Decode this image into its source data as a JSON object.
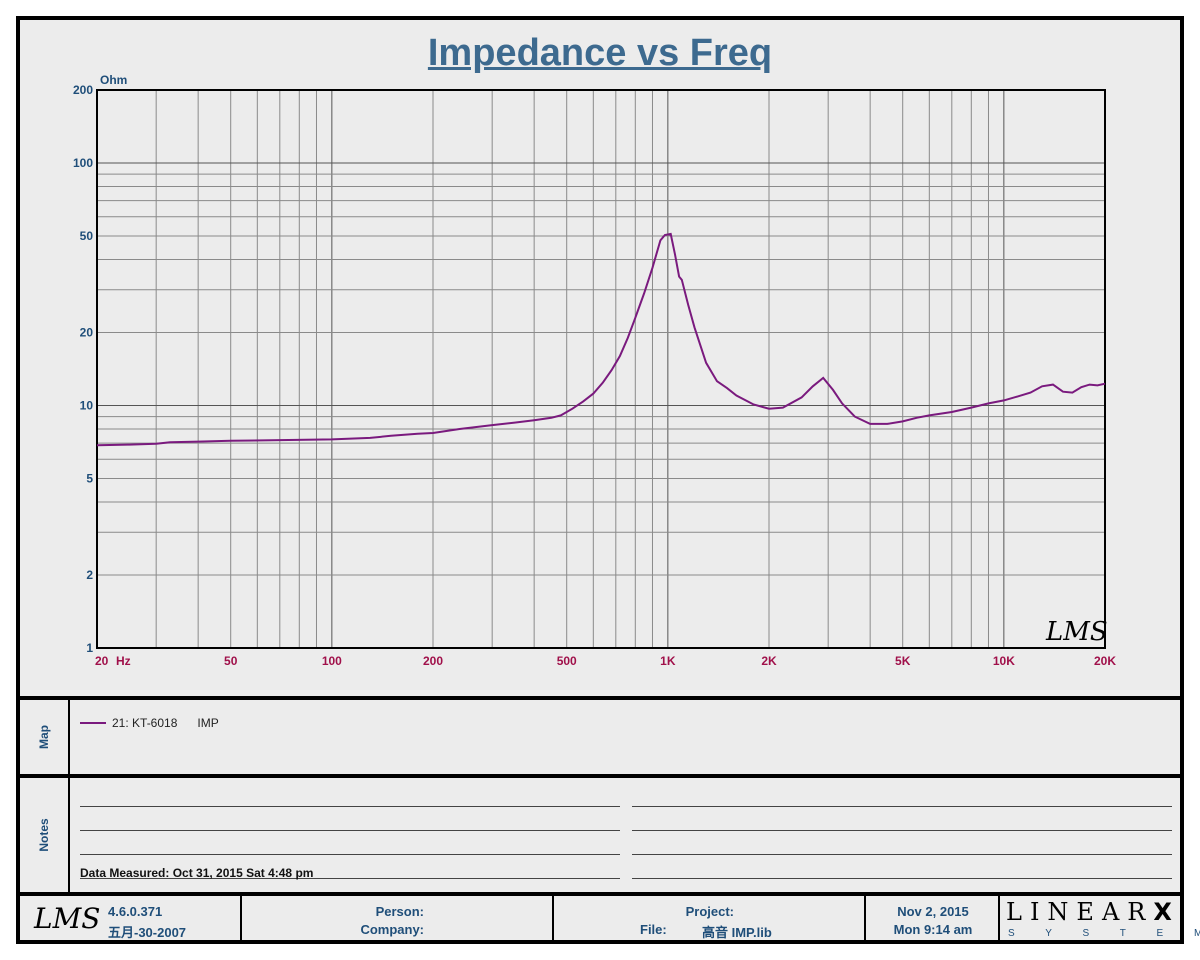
{
  "chart_data": {
    "type": "line",
    "title": "Impedance vs Freq",
    "ylabel": "Ohm",
    "xunit": "Hz",
    "xscale": "log",
    "yscale": "log",
    "xlim": [
      20,
      20000
    ],
    "ylim": [
      1,
      200
    ],
    "grid": true,
    "watermark": "LMS",
    "y_ticks": [
      {
        "v": 1,
        "label": "1"
      },
      {
        "v": 2,
        "label": "2"
      },
      {
        "v": 5,
        "label": "5"
      },
      {
        "v": 10,
        "label": "10"
      },
      {
        "v": 20,
        "label": "20"
      },
      {
        "v": 50,
        "label": "50"
      },
      {
        "v": 100,
        "label": "100"
      },
      {
        "v": 200,
        "label": "200"
      }
    ],
    "x_ticks": [
      {
        "v": 20,
        "label": "20"
      },
      {
        "v": 50,
        "label": "50"
      },
      {
        "v": 100,
        "label": "100"
      },
      {
        "v": 200,
        "label": "200"
      },
      {
        "v": 500,
        "label": "500"
      },
      {
        "v": 1000,
        "label": "1K"
      },
      {
        "v": 2000,
        "label": "2K"
      },
      {
        "v": 5000,
        "label": "5K"
      },
      {
        "v": 10000,
        "label": "10K"
      },
      {
        "v": 20000,
        "label": "20K"
      }
    ],
    "series": [
      {
        "name": "21: KT-6018",
        "type_label": "IMP",
        "color": "#7a1a7e",
        "x": [
          20,
          25,
          30,
          33,
          40,
          50,
          70,
          100,
          130,
          150,
          180,
          200,
          240,
          300,
          350,
          400,
          450,
          480,
          520,
          560,
          600,
          640,
          680,
          720,
          760,
          800,
          850,
          900,
          950,
          980,
          1020,
          1050,
          1080,
          1100,
          1150,
          1200,
          1300,
          1400,
          1500,
          1600,
          1800,
          2000,
          2200,
          2500,
          2700,
          2900,
          3100,
          3300,
          3600,
          4000,
          4500,
          5000,
          5500,
          6000,
          7000,
          8000,
          9000,
          10000,
          11000,
          12000,
          13000,
          14000,
          15000,
          16000,
          17000,
          18000,
          19000,
          20000
        ],
        "y": [
          6.85,
          6.9,
          6.95,
          7.05,
          7.1,
          7.15,
          7.2,
          7.25,
          7.35,
          7.5,
          7.65,
          7.7,
          8.0,
          8.3,
          8.5,
          8.7,
          8.9,
          9.1,
          9.7,
          10.4,
          11.2,
          12.4,
          14.0,
          16.0,
          19.0,
          23.0,
          29.0,
          37.0,
          48.0,
          50.5,
          51.0,
          42.0,
          34.0,
          33.0,
          26.0,
          21.0,
          15.0,
          12.6,
          11.8,
          11.0,
          10.1,
          9.7,
          9.8,
          10.8,
          12.0,
          13.0,
          11.6,
          10.2,
          9.0,
          8.4,
          8.4,
          8.6,
          8.9,
          9.1,
          9.4,
          9.8,
          10.2,
          10.5,
          10.9,
          11.3,
          12.0,
          12.2,
          11.4,
          11.3,
          11.9,
          12.2,
          12.1,
          12.3
        ]
      }
    ]
  },
  "map": {
    "side_label": "Map",
    "legend": {
      "name": "21: KT-6018",
      "type": "IMP"
    }
  },
  "notes": {
    "side_label": "Notes",
    "data_measured": "Data Measured: Oct 31, 2015  Sat  4:48 pm"
  },
  "footer": {
    "logo": "LMS",
    "version": "4.6.0.371",
    "build_date": "五月-30-2007",
    "person_label": "Person:",
    "company_label": "Company:",
    "project_label": "Project:",
    "file_label": "File:",
    "file_name": "高音 IMP.lib",
    "date": "Nov  2, 2015",
    "time": "Mon  9:14 am",
    "brand": "LINEAR",
    "brand_x": "X",
    "brand_sub": "S Y S T E M S"
  }
}
